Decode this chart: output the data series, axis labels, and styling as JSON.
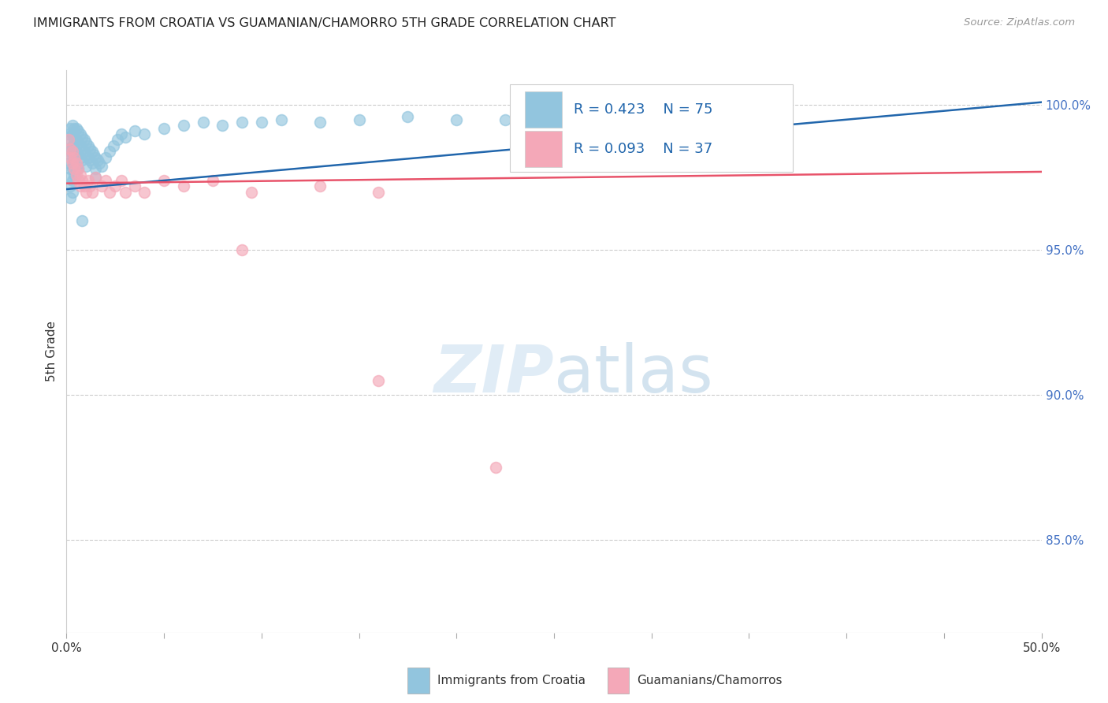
{
  "title": "IMMIGRANTS FROM CROATIA VS GUAMANIAN/CHAMORRO 5TH GRADE CORRELATION CHART",
  "source": "Source: ZipAtlas.com",
  "ylabel": "5th Grade",
  "ylabel_right_ticks": [
    "100.0%",
    "95.0%",
    "90.0%",
    "85.0%"
  ],
  "ylabel_right_values": [
    1.0,
    0.95,
    0.9,
    0.85
  ],
  "xlim": [
    0.0,
    0.5
  ],
  "ylim": [
    0.818,
    1.012
  ],
  "legend_blue_r": "R = 0.423",
  "legend_blue_n": "N = 75",
  "legend_pink_r": "R = 0.093",
  "legend_pink_n": "N = 37",
  "legend_blue_label": "Immigrants from Croatia",
  "legend_pink_label": "Guamanians/Chamorros",
  "blue_color": "#92c5de",
  "pink_color": "#f4a8b8",
  "blue_line_color": "#2166ac",
  "pink_line_color": "#e8536a",
  "blue_scatter_x": [
    0.001,
    0.001,
    0.001,
    0.001,
    0.002,
    0.002,
    0.002,
    0.002,
    0.002,
    0.002,
    0.003,
    0.003,
    0.003,
    0.003,
    0.003,
    0.003,
    0.003,
    0.004,
    0.004,
    0.004,
    0.004,
    0.004,
    0.005,
    0.005,
    0.005,
    0.005,
    0.006,
    0.006,
    0.006,
    0.006,
    0.007,
    0.007,
    0.007,
    0.008,
    0.008,
    0.008,
    0.009,
    0.009,
    0.01,
    0.01,
    0.01,
    0.011,
    0.011,
    0.012,
    0.012,
    0.013,
    0.013,
    0.014,
    0.015,
    0.015,
    0.016,
    0.017,
    0.018,
    0.02,
    0.022,
    0.024,
    0.026,
    0.028,
    0.03,
    0.035,
    0.04,
    0.05,
    0.06,
    0.07,
    0.08,
    0.09,
    0.1,
    0.11,
    0.13,
    0.15,
    0.175,
    0.2,
    0.225,
    0.015,
    0.008
  ],
  "blue_scatter_y": [
    0.99,
    0.985,
    0.98,
    0.975,
    0.992,
    0.988,
    0.984,
    0.978,
    0.972,
    0.968,
    0.993,
    0.99,
    0.986,
    0.982,
    0.978,
    0.974,
    0.97,
    0.992,
    0.988,
    0.984,
    0.98,
    0.976,
    0.992,
    0.988,
    0.984,
    0.978,
    0.991,
    0.987,
    0.983,
    0.978,
    0.99,
    0.986,
    0.982,
    0.989,
    0.985,
    0.981,
    0.988,
    0.984,
    0.987,
    0.983,
    0.979,
    0.986,
    0.982,
    0.985,
    0.981,
    0.984,
    0.98,
    0.983,
    0.982,
    0.978,
    0.981,
    0.98,
    0.979,
    0.982,
    0.984,
    0.986,
    0.988,
    0.99,
    0.989,
    0.991,
    0.99,
    0.992,
    0.993,
    0.994,
    0.993,
    0.994,
    0.994,
    0.995,
    0.994,
    0.995,
    0.996,
    0.995,
    0.995,
    0.975,
    0.96
  ],
  "pink_scatter_x": [
    0.001,
    0.002,
    0.002,
    0.003,
    0.003,
    0.004,
    0.004,
    0.005,
    0.005,
    0.006,
    0.006,
    0.007,
    0.007,
    0.008,
    0.009,
    0.01,
    0.011,
    0.012,
    0.013,
    0.015,
    0.018,
    0.02,
    0.022,
    0.025,
    0.028,
    0.03,
    0.035,
    0.04,
    0.05,
    0.06,
    0.075,
    0.095,
    0.13,
    0.16,
    0.09,
    0.16,
    0.22
  ],
  "pink_scatter_y": [
    0.988,
    0.985,
    0.982,
    0.984,
    0.98,
    0.982,
    0.978,
    0.98,
    0.976,
    0.978,
    0.974,
    0.976,
    0.972,
    0.974,
    0.972,
    0.97,
    0.974,
    0.972,
    0.97,
    0.975,
    0.972,
    0.974,
    0.97,
    0.972,
    0.974,
    0.97,
    0.972,
    0.97,
    0.974,
    0.972,
    0.974,
    0.97,
    0.972,
    0.97,
    0.95,
    0.905,
    0.875
  ],
  "blue_trend_x": [
    0.0,
    0.5
  ],
  "blue_trend_y": [
    0.971,
    1.001
  ],
  "pink_trend_x": [
    0.0,
    0.5
  ],
  "pink_trend_y": [
    0.973,
    0.977
  ],
  "grid_color": "#cccccc",
  "background_color": "#ffffff",
  "xtick_positions": [
    0.0,
    0.05,
    0.1,
    0.15,
    0.2,
    0.25,
    0.3,
    0.35,
    0.4,
    0.45,
    0.5
  ]
}
